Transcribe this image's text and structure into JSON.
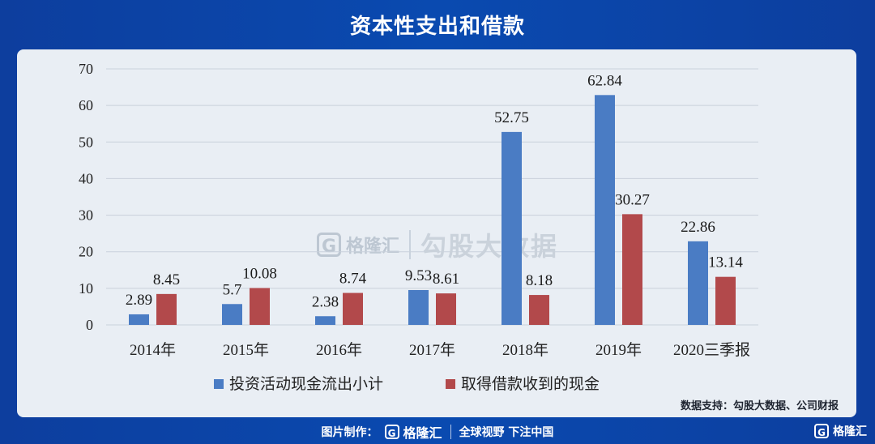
{
  "header": {
    "title": "资本性支出和借款"
  },
  "watermark": {
    "logo_letter": "G",
    "brand": "格隆汇",
    "text": "勾股大数据"
  },
  "source": "数据支持：勾股大数据、公司财报",
  "footer": {
    "made_by": "图片制作：",
    "logo_letter": "G",
    "brand": "格隆汇",
    "slogan": "全球视野 下注中国"
  },
  "corner": {
    "logo_letter": "G",
    "brand": "格隆汇"
  },
  "colors": {
    "series1": "#4a7cc4",
    "series2": "#b2494b"
  },
  "chart_data": {
    "type": "bar",
    "categories": [
      "2014年",
      "2015年",
      "2016年",
      "2017年",
      "2018年",
      "2019年",
      "2020三季报"
    ],
    "series": [
      {
        "name": "投资活动现金流出小计",
        "values": [
          2.89,
          5.7,
          2.38,
          9.53,
          52.75,
          62.84,
          22.86
        ],
        "labels": [
          "2.89",
          "5.7",
          "2.38",
          "9.53",
          "52.75",
          "62.84",
          "22.86"
        ]
      },
      {
        "name": "取得借款收到的现金",
        "values": [
          8.45,
          10.08,
          8.74,
          8.61,
          8.18,
          30.27,
          13.14
        ],
        "labels": [
          "8.45",
          "10.08",
          "8.74",
          "8.61",
          "8.18",
          "30.27",
          "13.14"
        ]
      }
    ],
    "ylim": [
      0,
      70
    ],
    "yticks": [
      "0",
      "10",
      "20",
      "30",
      "40",
      "50",
      "60",
      "70"
    ],
    "grid": true,
    "legend": "bottom"
  }
}
